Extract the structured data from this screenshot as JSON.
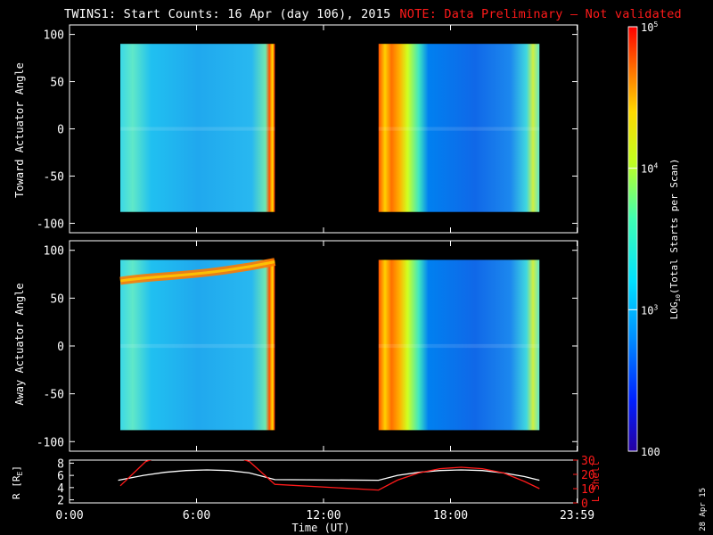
{
  "title": {
    "main": "TWINS1: Start Counts: 16 Apr (day 106), 2015",
    "note": "NOTE: Data Preliminary – Not validated",
    "note_color": "#ff1a1a"
  },
  "date_stamp": "28 Apr 15",
  "colors": {
    "background": "#000000",
    "axes": "#ffffff",
    "r_line": "#ffffff",
    "lshell_line": "#ff1a1a"
  },
  "chart_data": [
    {
      "type": "heatmap",
      "name": "toward-panel",
      "ylabel": "Toward Actuator Angle",
      "ylim": [
        -110,
        110
      ],
      "yticks": [
        100,
        50,
        0,
        -50,
        -100
      ],
      "xlim": [
        0,
        24
      ],
      "coverage_hours": [
        [
          2.4,
          9.7
        ],
        [
          14.6,
          22.2
        ]
      ],
      "angle_range": [
        -88,
        90
      ],
      "scale": "log10",
      "grid": false
    },
    {
      "type": "heatmap",
      "name": "away-panel",
      "ylabel": "Away Actuator Angle",
      "ylim": [
        -110,
        110
      ],
      "yticks": [
        100,
        50,
        0,
        -50,
        -100
      ],
      "xlim": [
        0,
        24
      ],
      "coverage_hours": [
        [
          2.4,
          9.7
        ],
        [
          14.6,
          22.2
        ]
      ],
      "angle_range": [
        -88,
        90
      ],
      "scale": "log10",
      "grid": false
    },
    {
      "type": "line",
      "name": "orbit-panel",
      "xlabel": "Time (UT)",
      "xticks": [
        "0:00",
        "6:00",
        "12:00",
        "18:00",
        "23:59"
      ],
      "xtick_hours": [
        0,
        6,
        12,
        18,
        23.98
      ],
      "xlim": [
        0,
        24
      ],
      "ylabel_left": "R [R",
      "ylabel_left_sub": "E",
      "ylabel_left_close": "]",
      "yticks_left": [
        "8",
        "6",
        "4",
        "2"
      ],
      "yticks_left_values": [
        8,
        6,
        4,
        2
      ],
      "ylim_left": [
        1.5,
        8.5
      ],
      "ylabel_right": "L Shell",
      "yticks_right": [
        "30",
        "20",
        "10",
        "0"
      ],
      "yticks_right_values": [
        30,
        20,
        10,
        0
      ],
      "ylim_right": [
        0,
        30
      ],
      "series": [
        {
          "axis": "left",
          "x": [
            2.3,
            3.5,
            4.5,
            5.5,
            6.5,
            7.5,
            8.5,
            9.7,
            14.6,
            15.5,
            16.5,
            17.5,
            18.5,
            19.5,
            20.5,
            21.5,
            22.2
          ],
          "y": [
            5.2,
            6.0,
            6.5,
            6.8,
            6.9,
            6.8,
            6.4,
            5.3,
            5.2,
            6.0,
            6.5,
            6.8,
            6.9,
            6.8,
            6.4,
            5.8,
            5.2
          ]
        },
        {
          "axis": "right",
          "x": [
            2.4,
            3.6,
            4.0,
            8.1,
            8.5,
            9.7,
            14.6,
            15.5,
            16.5,
            17.5,
            18.5,
            19.5,
            20.5,
            21.5,
            22.2
          ],
          "y": [
            12,
            29,
            31,
            31,
            29,
            13,
            9,
            16,
            21,
            24,
            25,
            24,
            21,
            15,
            10
          ]
        }
      ]
    },
    {
      "type": "heatmap",
      "name": "colorbar",
      "ylabel": "LOG",
      "ylabel_sub": "10",
      "ylabel_rest": "(Total Starts per Scan)",
      "tick_labels": [
        "10",
        "10",
        "10",
        "100"
      ],
      "tick_exponents": [
        "5",
        "4",
        "3",
        ""
      ],
      "tick_values": [
        100000,
        10000,
        1000,
        100
      ],
      "range": [
        100,
        100000
      ],
      "scale": "log10",
      "stops": [
        "#2600a0",
        "#0020ff",
        "#0090ff",
        "#00e0ff",
        "#40ffb0",
        "#c0ff20",
        "#ffd800",
        "#ff7000",
        "#ff0000"
      ]
    }
  ]
}
